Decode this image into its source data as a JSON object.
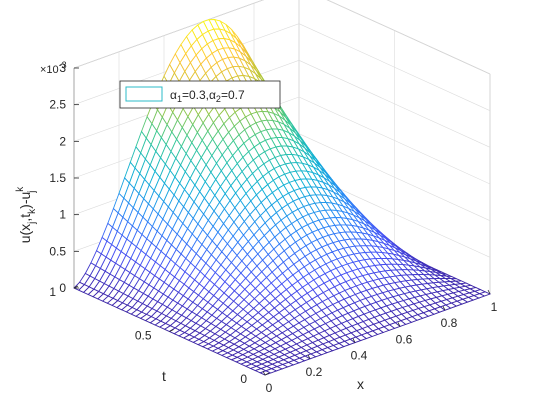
{
  "chart_data": {
    "type": "surface",
    "title": "",
    "xlabel": "x",
    "ylabel": "t",
    "zlabel": "u(x_j,t_k)-u_j^k",
    "zlabel_parts": {
      "u_open": "u(x",
      "sub_j": "j",
      "comma_t": ",t",
      "sub_k": "k",
      "close_minus_u": ")-u",
      "sup_k": "k",
      "sub_j2": "j"
    },
    "z_exponent_label": {
      "times": "×10",
      "exp": "-3"
    },
    "xlim": [
      0,
      1
    ],
    "ylim": [
      0,
      1
    ],
    "zlim": [
      0,
      0.003
    ],
    "x_ticks": [
      "0",
      "0.2",
      "0.4",
      "0.6",
      "0.8",
      "1"
    ],
    "y_ticks": [
      "0",
      "0.5",
      "1"
    ],
    "z_ticks": [
      "0",
      "0.5",
      "1",
      "1.5",
      "2",
      "2.5",
      "3"
    ],
    "legend": {
      "placement": "top-left",
      "parts": {
        "a1": "α",
        "a1_sub": "1",
        "a1_val": "=0.3,",
        "a2": "α",
        "a2_sub": "2",
        "a2_val": "=0.7"
      }
    },
    "surface": {
      "description_of_shape": "error peaks near x≈0.75 at t=1",
      "peak_value": 0.003,
      "peak_x": 0.75,
      "peak_t": 1.0,
      "grid_x_points": 41,
      "grid_t_points": 41
    },
    "colormap": "parula",
    "grid": true
  }
}
